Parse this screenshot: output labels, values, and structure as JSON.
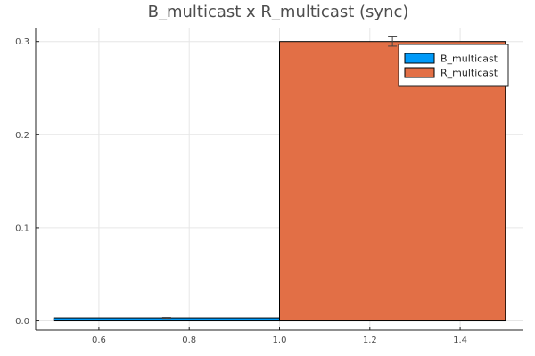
{
  "chart_data": {
    "type": "bar",
    "title": "B_multicast x R_multicast (sync)",
    "xlabel": "",
    "ylabel": "",
    "xlim": [
      0.46,
      1.54
    ],
    "ylim": [
      -0.01,
      0.315
    ],
    "x_ticks": [
      0.6,
      0.8,
      1.0,
      1.2,
      1.4
    ],
    "x_tick_labels": [
      "0.6",
      "0.8",
      "1.0",
      "1.2",
      "1.4"
    ],
    "y_ticks": [
      0.0,
      0.1,
      0.2,
      0.3
    ],
    "y_tick_labels": [
      "0.0",
      "0.1",
      "0.2",
      "0.3"
    ],
    "grid": true,
    "legend_position": "top-right",
    "series": [
      {
        "name": "B_multicast",
        "color": "#009af9",
        "x_start": 0.5,
        "x_end": 1.0,
        "value": 0.0033,
        "error_x": 0.75,
        "error_low": 0.0028,
        "error_high": 0.0038
      },
      {
        "name": "R_multicast",
        "color": "#e26f46",
        "x_start": 1.0,
        "x_end": 1.5,
        "value": 0.3,
        "error_x": 1.25,
        "error_low": 0.295,
        "error_high": 0.305
      }
    ]
  }
}
